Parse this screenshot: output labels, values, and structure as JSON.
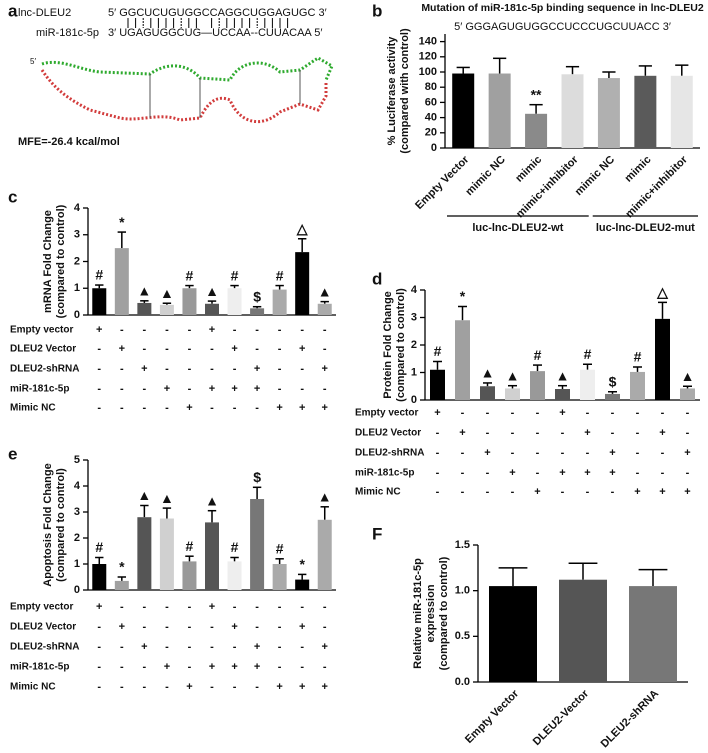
{
  "panel_a": {
    "label": "a",
    "rna_name": "lnc-DLEU2",
    "rna_sequence": "5′ GGCUCUGUGGCCAGGCUGGAGUGC 3′",
    "mirna_name": "miR-181c-5p",
    "mirna_sequence": "3′ UGAGUGGCUG—UCCAA--CUUACAA 5′",
    "structure_end": "5′",
    "mfe": "MFE=-26.4 kcal/mol"
  },
  "chart_data": [
    {
      "type": "bar",
      "panel_label": "b",
      "title": "Mutation of miR-181c-5p binding sequence in lnc-DLEU2",
      "subtitle": "5′ GGGAGUGUGGCCUCCCUGCUUACC 3′",
      "ylabel": [
        "% Luciferase activity",
        "(compared with control)"
      ],
      "ylim": [
        0,
        150
      ],
      "yticks": [
        0,
        20,
        40,
        60,
        80,
        100,
        120,
        140
      ],
      "groups": [
        {
          "name": "luc-lnc-DLEU2-wt",
          "categories": [
            "Empty Vector",
            "mimic NC",
            "mimic",
            "mimic+inhibitor"
          ],
          "values": [
            98,
            98,
            45,
            97
          ],
          "errors": [
            8,
            20,
            12,
            10
          ],
          "colors": [
            "#000000",
            "#a0a0a0",
            "#8a8a8a",
            "#dcdcdc"
          ],
          "annotations": [
            null,
            null,
            "**",
            null
          ]
        },
        {
          "name": "luc-lnc-DLEU2-mut",
          "categories": [
            "mimic NC",
            "mimic",
            "mimic+inhibitor"
          ],
          "values": [
            92,
            95,
            95
          ],
          "errors": [
            8,
            13,
            14
          ],
          "colors": [
            "#b0b0b0",
            "#5a5a5a",
            "#e6e6e6"
          ]
        }
      ]
    },
    {
      "type": "bar",
      "panel_label": "c",
      "ylabel": [
        "mRNA Fold Change",
        "(compared to control)"
      ],
      "ylim": [
        0,
        4
      ],
      "yticks": [
        0,
        1,
        2,
        3,
        4
      ],
      "values": [
        1.0,
        2.5,
        0.45,
        0.38,
        1.0,
        0.42,
        1.0,
        0.25,
        0.95,
        2.35,
        0.42
      ],
      "errors": [
        0.12,
        0.6,
        0.08,
        0.06,
        0.1,
        0.1,
        0.1,
        0.06,
        0.15,
        0.5,
        0.08
      ],
      "colors": [
        "#000000",
        "#a0a0a0",
        "#555555",
        "#d0d0d0",
        "#999999",
        "#555555",
        "#eeeeee",
        "#777777",
        "#aaaaaa",
        "#000000",
        "#aaaaaa"
      ],
      "annotations": [
        "#",
        "*",
        "▲",
        "▲",
        "#",
        "▲",
        "#",
        "$",
        "#",
        "△",
        "▲"
      ],
      "conditions": [
        {
          "name": "Empty vector",
          "signs": [
            "+",
            "-",
            "-",
            "-",
            "-",
            "+",
            "-",
            "-",
            "-",
            "-",
            "-"
          ]
        },
        {
          "name": "DLEU2 Vector",
          "signs": [
            "-",
            "+",
            "-",
            "-",
            "-",
            "-",
            "+",
            "-",
            "-",
            "+",
            "-"
          ]
        },
        {
          "name": "DLEU2-shRNA",
          "signs": [
            "-",
            "-",
            "+",
            "-",
            "-",
            "-",
            "-",
            "+",
            "-",
            "-",
            "+"
          ]
        },
        {
          "name": "miR-181c-5p",
          "signs": [
            "-",
            "-",
            "-",
            "+",
            "-",
            "+",
            "+",
            "+",
            "-",
            "-",
            "-"
          ]
        },
        {
          "name": "Mimic NC",
          "signs": [
            "-",
            "-",
            "-",
            "-",
            "+",
            "-",
            "-",
            "-",
            "+",
            "+",
            "+"
          ]
        }
      ]
    },
    {
      "type": "bar",
      "panel_label": "d",
      "ylabel": [
        "Protein Fold Change",
        "(compared to control)"
      ],
      "ylim": [
        0,
        4
      ],
      "yticks": [
        0,
        1,
        2,
        3,
        4
      ],
      "values": [
        1.1,
        2.9,
        0.5,
        0.42,
        1.05,
        0.4,
        1.1,
        0.22,
        1.02,
        2.95,
        0.42
      ],
      "errors": [
        0.3,
        0.5,
        0.12,
        0.1,
        0.22,
        0.12,
        0.2,
        0.08,
        0.18,
        0.6,
        0.08
      ],
      "colors": [
        "#000000",
        "#a0a0a0",
        "#555555",
        "#d0d0d0",
        "#999999",
        "#555555",
        "#eeeeee",
        "#777777",
        "#aaaaaa",
        "#000000",
        "#aaaaaa"
      ],
      "annotations": [
        "#",
        "*",
        "▲",
        "▲",
        "#",
        "▲",
        "#",
        "$",
        "#",
        "△",
        "▲"
      ],
      "conditions": [
        {
          "name": "Empty vector",
          "signs": [
            "+",
            "-",
            "-",
            "-",
            "-",
            "+",
            "-",
            "-",
            "-",
            "-",
            "-"
          ]
        },
        {
          "name": "DLEU2 Vector",
          "signs": [
            "-",
            "+",
            "-",
            "-",
            "-",
            "-",
            "+",
            "-",
            "-",
            "+",
            "-"
          ]
        },
        {
          "name": "DLEU2-shRNA",
          "signs": [
            "-",
            "-",
            "+",
            "-",
            "-",
            "-",
            "-",
            "+",
            "-",
            "-",
            "+"
          ]
        },
        {
          "name": "miR-181c-5p",
          "signs": [
            "-",
            "-",
            "-",
            "+",
            "-",
            "+",
            "+",
            "+",
            "-",
            "-",
            "-"
          ]
        },
        {
          "name": "Mimic NC",
          "signs": [
            "-",
            "-",
            "-",
            "-",
            "+",
            "-",
            "-",
            "-",
            "+",
            "+",
            "+"
          ]
        }
      ]
    },
    {
      "type": "bar",
      "panel_label": "e",
      "ylabel": [
        "Apoptosis Fold Change",
        "(compared to control)"
      ],
      "ylim": [
        0,
        5
      ],
      "yticks": [
        0,
        1,
        2,
        3,
        4,
        5
      ],
      "values": [
        1.0,
        0.35,
        2.8,
        2.75,
        1.1,
        2.6,
        1.1,
        3.5,
        1.0,
        0.4,
        2.7
      ],
      "errors": [
        0.25,
        0.15,
        0.45,
        0.4,
        0.2,
        0.45,
        0.15,
        0.45,
        0.2,
        0.2,
        0.5
      ],
      "colors": [
        "#000000",
        "#a0a0a0",
        "#555555",
        "#d0d0d0",
        "#999999",
        "#555555",
        "#eeeeee",
        "#777777",
        "#aaaaaa",
        "#000000",
        "#aaaaaa"
      ],
      "annotations": [
        "#",
        "*",
        "▲",
        "▲",
        "#",
        "▲",
        "#",
        "$",
        "#",
        "*",
        "▲"
      ],
      "conditions": [
        {
          "name": "Empty vector",
          "signs": [
            "+",
            "-",
            "-",
            "-",
            "-",
            "+",
            "-",
            "-",
            "-",
            "-",
            "-"
          ]
        },
        {
          "name": "DLEU2 Vector",
          "signs": [
            "-",
            "+",
            "-",
            "-",
            "-",
            "-",
            "+",
            "-",
            "-",
            "+",
            "-"
          ]
        },
        {
          "name": "DLEU2-shRNA",
          "signs": [
            "-",
            "-",
            "+",
            "-",
            "-",
            "-",
            "-",
            "+",
            "-",
            "-",
            "+"
          ]
        },
        {
          "name": "miR-181c-5p",
          "signs": [
            "-",
            "-",
            "-",
            "+",
            "-",
            "+",
            "+",
            "+",
            "-",
            "-",
            "-"
          ]
        },
        {
          "name": "Mimic NC",
          "signs": [
            "-",
            "-",
            "-",
            "-",
            "+",
            "-",
            "-",
            "-",
            "+",
            "+",
            "+"
          ]
        }
      ]
    },
    {
      "type": "bar",
      "panel_label": "F",
      "ylabel": [
        "Relative miR-181c-5p",
        "expression",
        "(compared to control)"
      ],
      "ylim": [
        0,
        1.5
      ],
      "yticks": [
        {
          "value": 0,
          "label": "0.0"
        },
        {
          "value": 0.5,
          "label": "0.5"
        },
        {
          "value": 1,
          "label": "1.0"
        },
        {
          "value": 1.5,
          "label": "1.5"
        }
      ],
      "categories": [
        "Empty Vector",
        "DLEU2-Vector",
        "DLEU2-shRNA"
      ],
      "values": [
        1.05,
        1.12,
        1.05
      ],
      "errors": [
        0.2,
        0.18,
        0.18
      ],
      "colors": [
        "#000000",
        "#555555",
        "#777777"
      ]
    }
  ]
}
